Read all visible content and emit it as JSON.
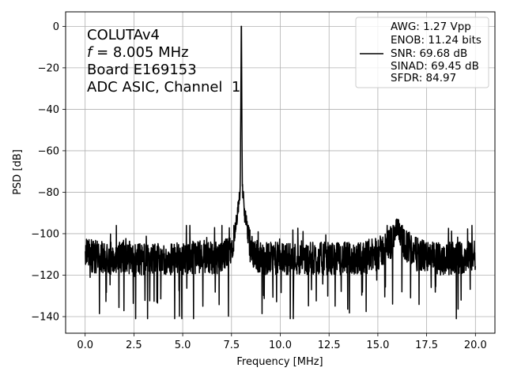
{
  "chart_data": {
    "type": "line",
    "xlabel": "Frequency [MHz]",
    "ylabel": "PSD [dB]",
    "xlim": [
      -1,
      21
    ],
    "ylim": [
      -148,
      7
    ],
    "xticks": [
      0.0,
      2.5,
      5.0,
      7.5,
      10.0,
      12.5,
      15.0,
      17.5,
      20.0
    ],
    "xtick_labels": [
      "0.0",
      "2.5",
      "5.0",
      "7.5",
      "10.0",
      "12.5",
      "15.0",
      "17.5",
      "20.0"
    ],
    "yticks": [
      0,
      -20,
      -40,
      -60,
      -80,
      -100,
      -120,
      -140
    ],
    "ytick_labels": [
      "0",
      "−20",
      "−40",
      "−60",
      "−80",
      "−100",
      "−120",
      "−140"
    ],
    "grid": true,
    "line_color": "#000000",
    "noise_floor_db": -112,
    "series": [
      {
        "x": [
          0.0,
          1.0,
          2.0,
          3.0,
          4.0,
          5.0,
          6.0,
          7.0,
          7.5,
          7.8,
          7.95,
          8.005,
          8.06,
          8.2,
          8.5,
          9.0,
          10.0,
          11.0,
          12.0,
          13.0,
          14.0,
          15.0,
          15.7,
          16.0,
          16.3,
          17.0,
          18.0,
          19.0,
          20.0
        ],
        "y": [
          -110,
          -112,
          -111,
          -113,
          -112,
          -112,
          -111,
          -112,
          -106,
          -92,
          -78,
          0,
          -80,
          -92,
          -108,
          -112,
          -112,
          -112,
          -112,
          -112,
          -112,
          -110,
          -104,
          -96,
          -104,
          -110,
          -112,
          -112,
          -110
        ]
      }
    ],
    "annotations": [
      {
        "text": "COLUTAv4"
      },
      {
        "italic": "f",
        "text": " = 8.005 MHz"
      },
      {
        "text": "Board E169153"
      },
      {
        "text": "ADC ASIC, Channel  1"
      }
    ],
    "legend": {
      "placement": "upper-right",
      "entries": [
        "AWG: 1.27 Vpp",
        "ENOB: 11.24 bits",
        "SNR: 69.68 dB",
        "SINAD: 69.45 dB",
        "SFDR: 84.97"
      ]
    }
  }
}
